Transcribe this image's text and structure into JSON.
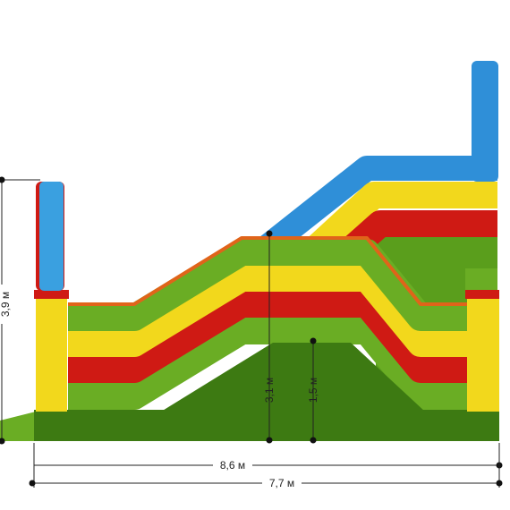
{
  "dimensions": {
    "total_height": "3,9 м",
    "slide_height": "3,1 м",
    "hill_height": "1,5 м",
    "total_length": "8,6 м",
    "base_length": "7,7 м"
  }
}
